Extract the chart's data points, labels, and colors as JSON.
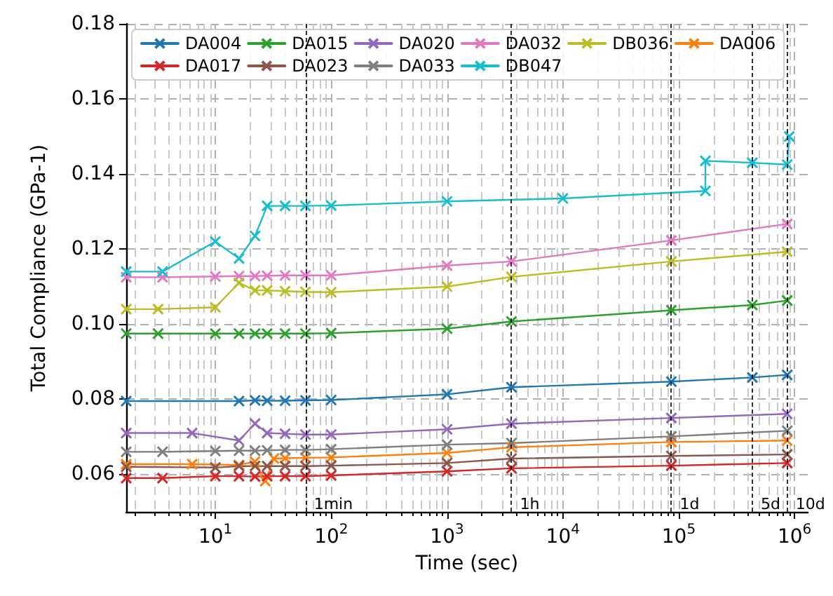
{
  "chart_data": {
    "type": "line",
    "xlabel": "Time (sec)",
    "ylabel": "Total Compliance (GPa-1)",
    "log": "x",
    "grid": true,
    "legend": "top",
    "marker": "cross",
    "line_style": "solid",
    "xlim": [
      1.7,
      1300000
    ],
    "xticks": [
      {
        "value": 10,
        "label": "10$^{1}$"
      },
      {
        "value": 100,
        "label": "10$^{2}$"
      },
      {
        "value": 1000,
        "label": "10$^{3}$"
      },
      {
        "value": 10000,
        "label": "10$^{4}$"
      },
      {
        "value": 100000,
        "label": "10$^{5}$"
      },
      {
        "value": 1000000,
        "label": "10$^{6}$"
      }
    ],
    "ylim": [
      0.05,
      0.18
    ],
    "yticks": [
      {
        "value": 0.06,
        "label": "0.06"
      },
      {
        "value": 0.08,
        "label": "0.08"
      },
      {
        "value": 0.1,
        "label": "0.10"
      },
      {
        "value": 0.12,
        "label": "0.12"
      },
      {
        "value": 0.14,
        "label": "0.14"
      },
      {
        "value": 0.16,
        "label": "0.16"
      },
      {
        "value": 0.18,
        "label": "0.18"
      }
    ],
    "ref_lines": [
      {
        "axis": "x",
        "value": 60,
        "label": "1min",
        "color": "#000000",
        "line_style": "dashed"
      },
      {
        "axis": "x",
        "value": 3600,
        "label": "1h",
        "color": "#000000",
        "line_style": "dashed"
      },
      {
        "axis": "x",
        "value": 86400,
        "label": "1d",
        "color": "#000000",
        "line_style": "dashed"
      },
      {
        "axis": "x",
        "value": 432000,
        "label": "5d",
        "color": "#000000",
        "line_style": "dashed"
      },
      {
        "axis": "x",
        "value": 864000,
        "label": "10d",
        "color": "#000000",
        "line_style": "dashed"
      }
    ],
    "series": [
      {
        "name": "DA004",
        "color": "#1f77b4",
        "x": [
          1.7,
          16,
          22,
          28,
          40,
          60,
          100,
          1000,
          3600,
          86400,
          432000,
          864000
        ],
        "values": [
          0.0795,
          0.0795,
          0.0797,
          0.0796,
          0.0796,
          0.0797,
          0.0798,
          0.0813,
          0.0832,
          0.0847,
          0.0858,
          0.0865
        ]
      },
      {
        "name": "DA006",
        "color": "#ff7f0e",
        "x": [
          1.7,
          6.3,
          16,
          22,
          27,
          32,
          40,
          60,
          100,
          1000,
          3600,
          86400,
          864000
        ],
        "values": [
          0.0627,
          0.0627,
          0.0625,
          0.0634,
          0.0582,
          0.0642,
          0.0643,
          0.0644,
          0.0645,
          0.0657,
          0.0672,
          0.0686,
          0.069
        ]
      },
      {
        "name": "DA015",
        "color": "#2ca02c",
        "x": [
          1.7,
          3.2,
          10,
          16,
          22,
          28,
          40,
          60,
          100,
          1000,
          3600,
          86400,
          432000,
          864000
        ],
        "values": [
          0.0975,
          0.0975,
          0.0975,
          0.0975,
          0.0975,
          0.0975,
          0.0975,
          0.0975,
          0.0976,
          0.0988,
          0.1007,
          0.1037,
          0.1051,
          0.1063
        ]
      },
      {
        "name": "DA017",
        "color": "#d62728",
        "x": [
          1.7,
          3.5,
          10,
          16,
          22,
          28,
          40,
          60,
          100,
          1000,
          3600,
          86400,
          864000
        ],
        "values": [
          0.059,
          0.059,
          0.0595,
          0.0595,
          0.0594,
          0.0595,
          0.0595,
          0.0595,
          0.0597,
          0.0608,
          0.0616,
          0.0623,
          0.063
        ]
      },
      {
        "name": "DA020",
        "color": "#9467bd",
        "x": [
          1.7,
          6.3,
          16,
          22,
          28,
          40,
          60,
          100,
          1000,
          3600,
          86400,
          864000
        ],
        "values": [
          0.071,
          0.071,
          0.069,
          0.0735,
          0.071,
          0.0708,
          0.0706,
          0.0706,
          0.072,
          0.0735,
          0.075,
          0.0761
        ]
      },
      {
        "name": "DA023",
        "color": "#8c564b",
        "x": [
          1.7,
          10,
          16,
          22,
          28,
          40,
          60,
          100,
          1000,
          3600,
          86400,
          864000
        ],
        "values": [
          0.062,
          0.0618,
          0.0622,
          0.0622,
          0.0622,
          0.0622,
          0.0622,
          0.0623,
          0.063,
          0.0642,
          0.0649,
          0.0653
        ]
      },
      {
        "name": "DA032",
        "color": "#e377c2",
        "x": [
          1.7,
          3.5,
          10,
          16,
          22,
          28,
          40,
          60,
          100,
          1000,
          3600,
          86400,
          864000
        ],
        "values": [
          0.1125,
          0.1125,
          0.1127,
          0.1128,
          0.1128,
          0.1129,
          0.113,
          0.113,
          0.113,
          0.1156,
          0.1167,
          0.1223,
          0.1267
        ]
      },
      {
        "name": "DA033",
        "color": "#7f7f7f",
        "x": [
          1.7,
          3.5,
          10,
          16,
          22,
          28,
          40,
          60,
          100,
          1000,
          3600,
          86400,
          864000
        ],
        "values": [
          0.066,
          0.066,
          0.0662,
          0.0663,
          0.0663,
          0.0664,
          0.0665,
          0.0665,
          0.0667,
          0.0679,
          0.0683,
          0.0701,
          0.0716
        ]
      },
      {
        "name": "DB036",
        "color": "#bcbd22",
        "x": [
          1.7,
          3.2,
          10,
          16,
          22,
          28,
          40,
          60,
          100,
          1000,
          3600,
          86400,
          864000
        ],
        "values": [
          0.104,
          0.104,
          0.1045,
          0.111,
          0.109,
          0.109,
          0.1088,
          0.1086,
          0.1085,
          0.11,
          0.1126,
          0.1167,
          0.1193
        ]
      },
      {
        "name": "DB047",
        "color": "#17becf",
        "x": [
          1.7,
          3.5,
          10,
          16,
          22,
          28,
          40,
          60,
          100,
          1000,
          10000,
          170000,
          170000,
          432000,
          864000,
          900000
        ],
        "values": [
          0.114,
          0.114,
          0.122,
          0.1175,
          0.1235,
          0.1315,
          0.1315,
          0.1315,
          0.1316,
          0.1327,
          0.1335,
          0.1355,
          0.1435,
          0.143,
          0.1425,
          0.15
        ]
      }
    ]
  }
}
